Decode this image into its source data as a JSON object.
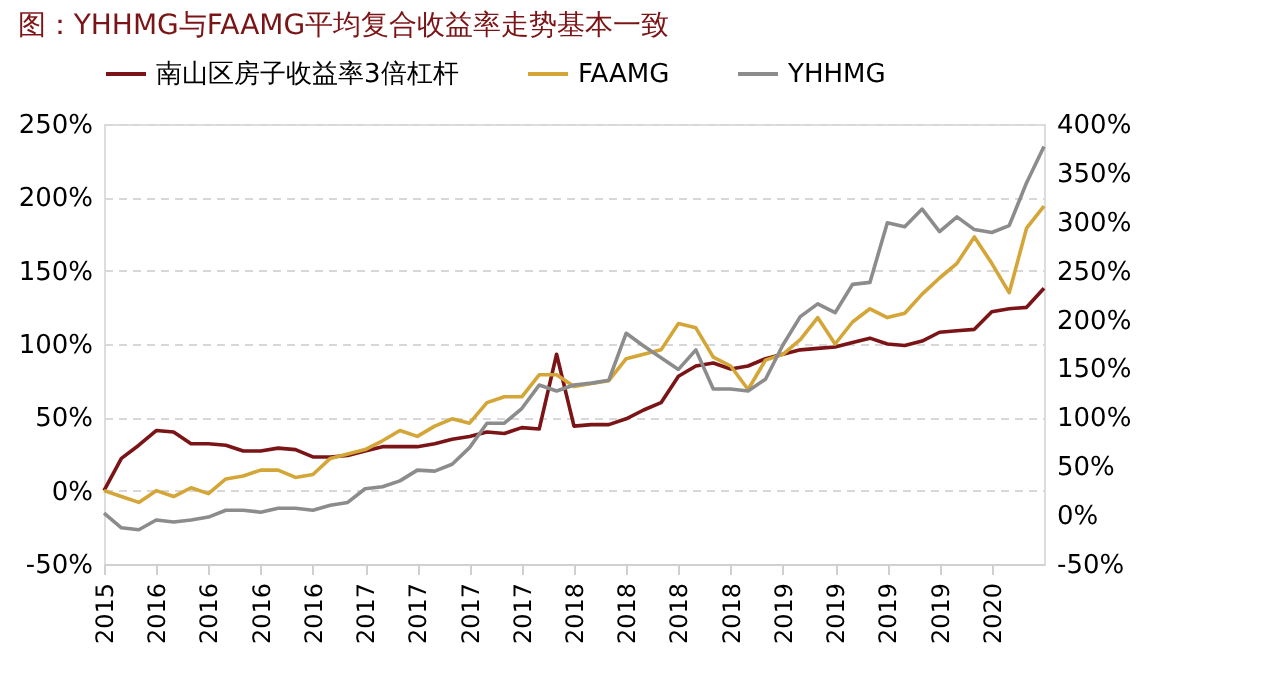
{
  "chart_data": {
    "type": "line",
    "title": "图：YHHMG与FAAMG平均复合收益率走势基本一致",
    "categories": [
      "2015",
      null,
      null,
      "2016",
      null,
      null,
      "2016",
      null,
      null,
      "2016",
      null,
      null,
      "2016",
      null,
      null,
      "2017",
      null,
      null,
      "2017",
      null,
      null,
      "2017",
      null,
      null,
      "2017",
      null,
      null,
      "2018",
      null,
      null,
      "2018",
      null,
      null,
      "2018",
      null,
      null,
      "2018",
      null,
      null,
      "2019",
      null,
      null,
      "2019",
      null,
      null,
      "2019",
      null,
      null,
      "2019",
      null,
      null,
      "2020",
      null,
      null,
      null
    ],
    "series": [
      {
        "name": "南山区房子收益率3倍杠杆",
        "color": "#7b1416",
        "values": [
          0,
          22,
          31,
          41,
          40,
          32,
          32,
          31,
          27,
          27,
          29,
          28,
          23,
          23,
          24,
          27,
          30,
          30,
          30,
          32,
          35,
          37,
          40,
          39,
          43,
          42,
          93,
          44,
          45,
          45,
          49,
          55,
          60,
          78,
          85,
          87,
          83,
          85,
          90,
          93,
          96,
          97,
          98,
          101,
          104,
          100,
          99,
          102,
          108,
          109,
          110,
          122,
          124,
          125,
          138
        ]
      },
      {
        "name": "FAAMG",
        "color": "#d4a537",
        "values": [
          0,
          -4,
          -8,
          0,
          -4,
          2,
          -2,
          8,
          10,
          14,
          14,
          9,
          11,
          22,
          25,
          28,
          34,
          41,
          37,
          44,
          49,
          46,
          60,
          64,
          64,
          79,
          79,
          71,
          73,
          75,
          90,
          93,
          96,
          114,
          111,
          91,
          85,
          69,
          89,
          93,
          103,
          118,
          100,
          115,
          124,
          118,
          121,
          134,
          145,
          155,
          173,
          155,
          135,
          179,
          194
        ]
      },
      {
        "name": "YHHMG",
        "color": "#8c8c8c",
        "axis": "y2",
        "values": [
          2,
          -13,
          -15,
          -5,
          -7,
          -5,
          -2,
          5,
          5,
          3,
          7,
          7,
          5,
          10,
          13,
          27,
          29,
          35,
          46,
          45,
          52,
          69,
          94,
          94,
          109,
          133,
          127,
          133,
          135,
          138,
          186,
          173,
          161,
          149,
          169,
          129,
          129,
          127,
          139,
          174,
          203,
          216,
          207,
          236,
          238,
          299,
          295,
          313,
          290,
          305,
          292,
          289,
          296,
          340,
          377
        ]
      }
    ],
    "ylim": [
      -50,
      250
    ],
    "yticks": [
      {
        "value": -50,
        "label": "-50%"
      },
      {
        "value": 0,
        "label": "0%"
      },
      {
        "value": 50,
        "label": "50%"
      },
      {
        "value": 100,
        "label": "100%"
      },
      {
        "value": 150,
        "label": "150%"
      },
      {
        "value": 200,
        "label": "200%"
      },
      {
        "value": 250,
        "label": "250%"
      }
    ],
    "y2lim": [
      -50,
      400
    ],
    "y2ticks": [
      {
        "value": -50,
        "label": "-50%"
      },
      {
        "value": 0,
        "label": "0%"
      },
      {
        "value": 50,
        "label": "50%"
      },
      {
        "value": 100,
        "label": "100%"
      },
      {
        "value": 150,
        "label": "150%"
      },
      {
        "value": 200,
        "label": "200%"
      },
      {
        "value": 250,
        "label": "250%"
      },
      {
        "value": 300,
        "label": "300%"
      },
      {
        "value": 350,
        "label": "350%"
      },
      {
        "value": 400,
        "label": "400%"
      }
    ],
    "grid": "y",
    "legend": "top",
    "line_style": "solid",
    "marker": "none"
  }
}
